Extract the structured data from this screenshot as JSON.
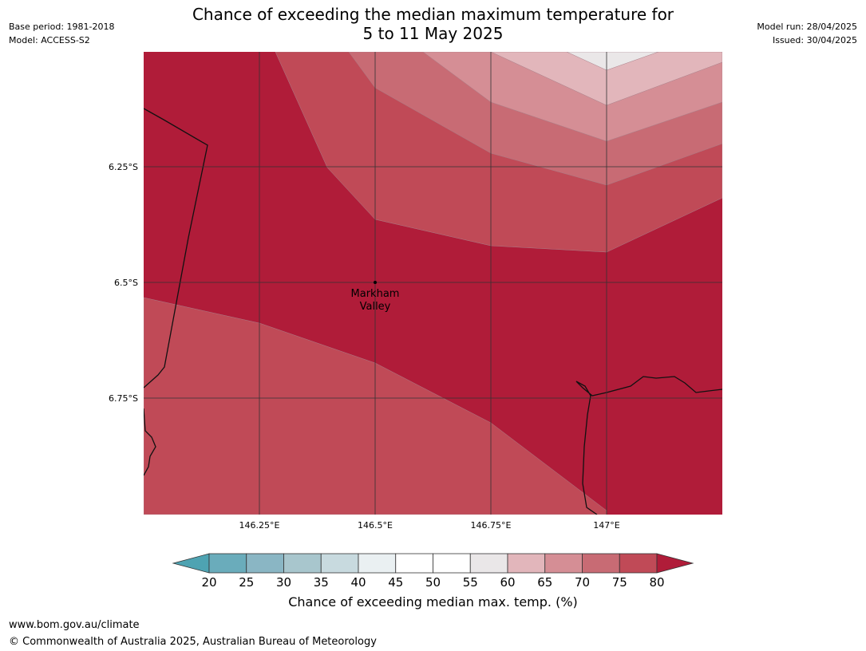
{
  "title_line1": "Chance of exceeding the median maximum temperature for",
  "title_line2": "5 to 11 May 2025",
  "meta_left": {
    "base_period": "Base period: 1981-2018",
    "model": "Model: ACCESS-S2"
  },
  "meta_right": {
    "model_run": "Model run: 28/04/2025",
    "issued": "Issued: 30/04/2025"
  },
  "map": {
    "lon_labels": [
      "146.25°E",
      "146.5°E",
      "146.75°E",
      "147°E"
    ],
    "lat_labels": [
      "6.25°S",
      "6.5°S",
      "6.75°S"
    ],
    "place": {
      "name_line1": "Markham",
      "name_line2": "Valley",
      "lon": 146.5,
      "lat": -6.5
    }
  },
  "colorbar": {
    "label": "Chance of exceeding median max. temp. (%)",
    "ticks": [
      "20",
      "25",
      "30",
      "35",
      "40",
      "45",
      "50",
      "55",
      "60",
      "65",
      "70",
      "75",
      "80"
    ],
    "colors": [
      "#6aacbb",
      "#8ab6c4",
      "#a8c6cd",
      "#c8dadf",
      "#eaf0f2",
      "#ffffff",
      "#ffffff",
      "#eae7e8",
      "#e2b6bb",
      "#d58e95",
      "#c86b74",
      "#c04a57"
    ],
    "under_color": "#4ea3b2",
    "over_color": "#b01c39"
  },
  "footer": {
    "url": "www.bom.gov.au/climate",
    "copyright": "© Commonwealth of Australia 2025, Australian Bureau of Meteorology"
  }
}
